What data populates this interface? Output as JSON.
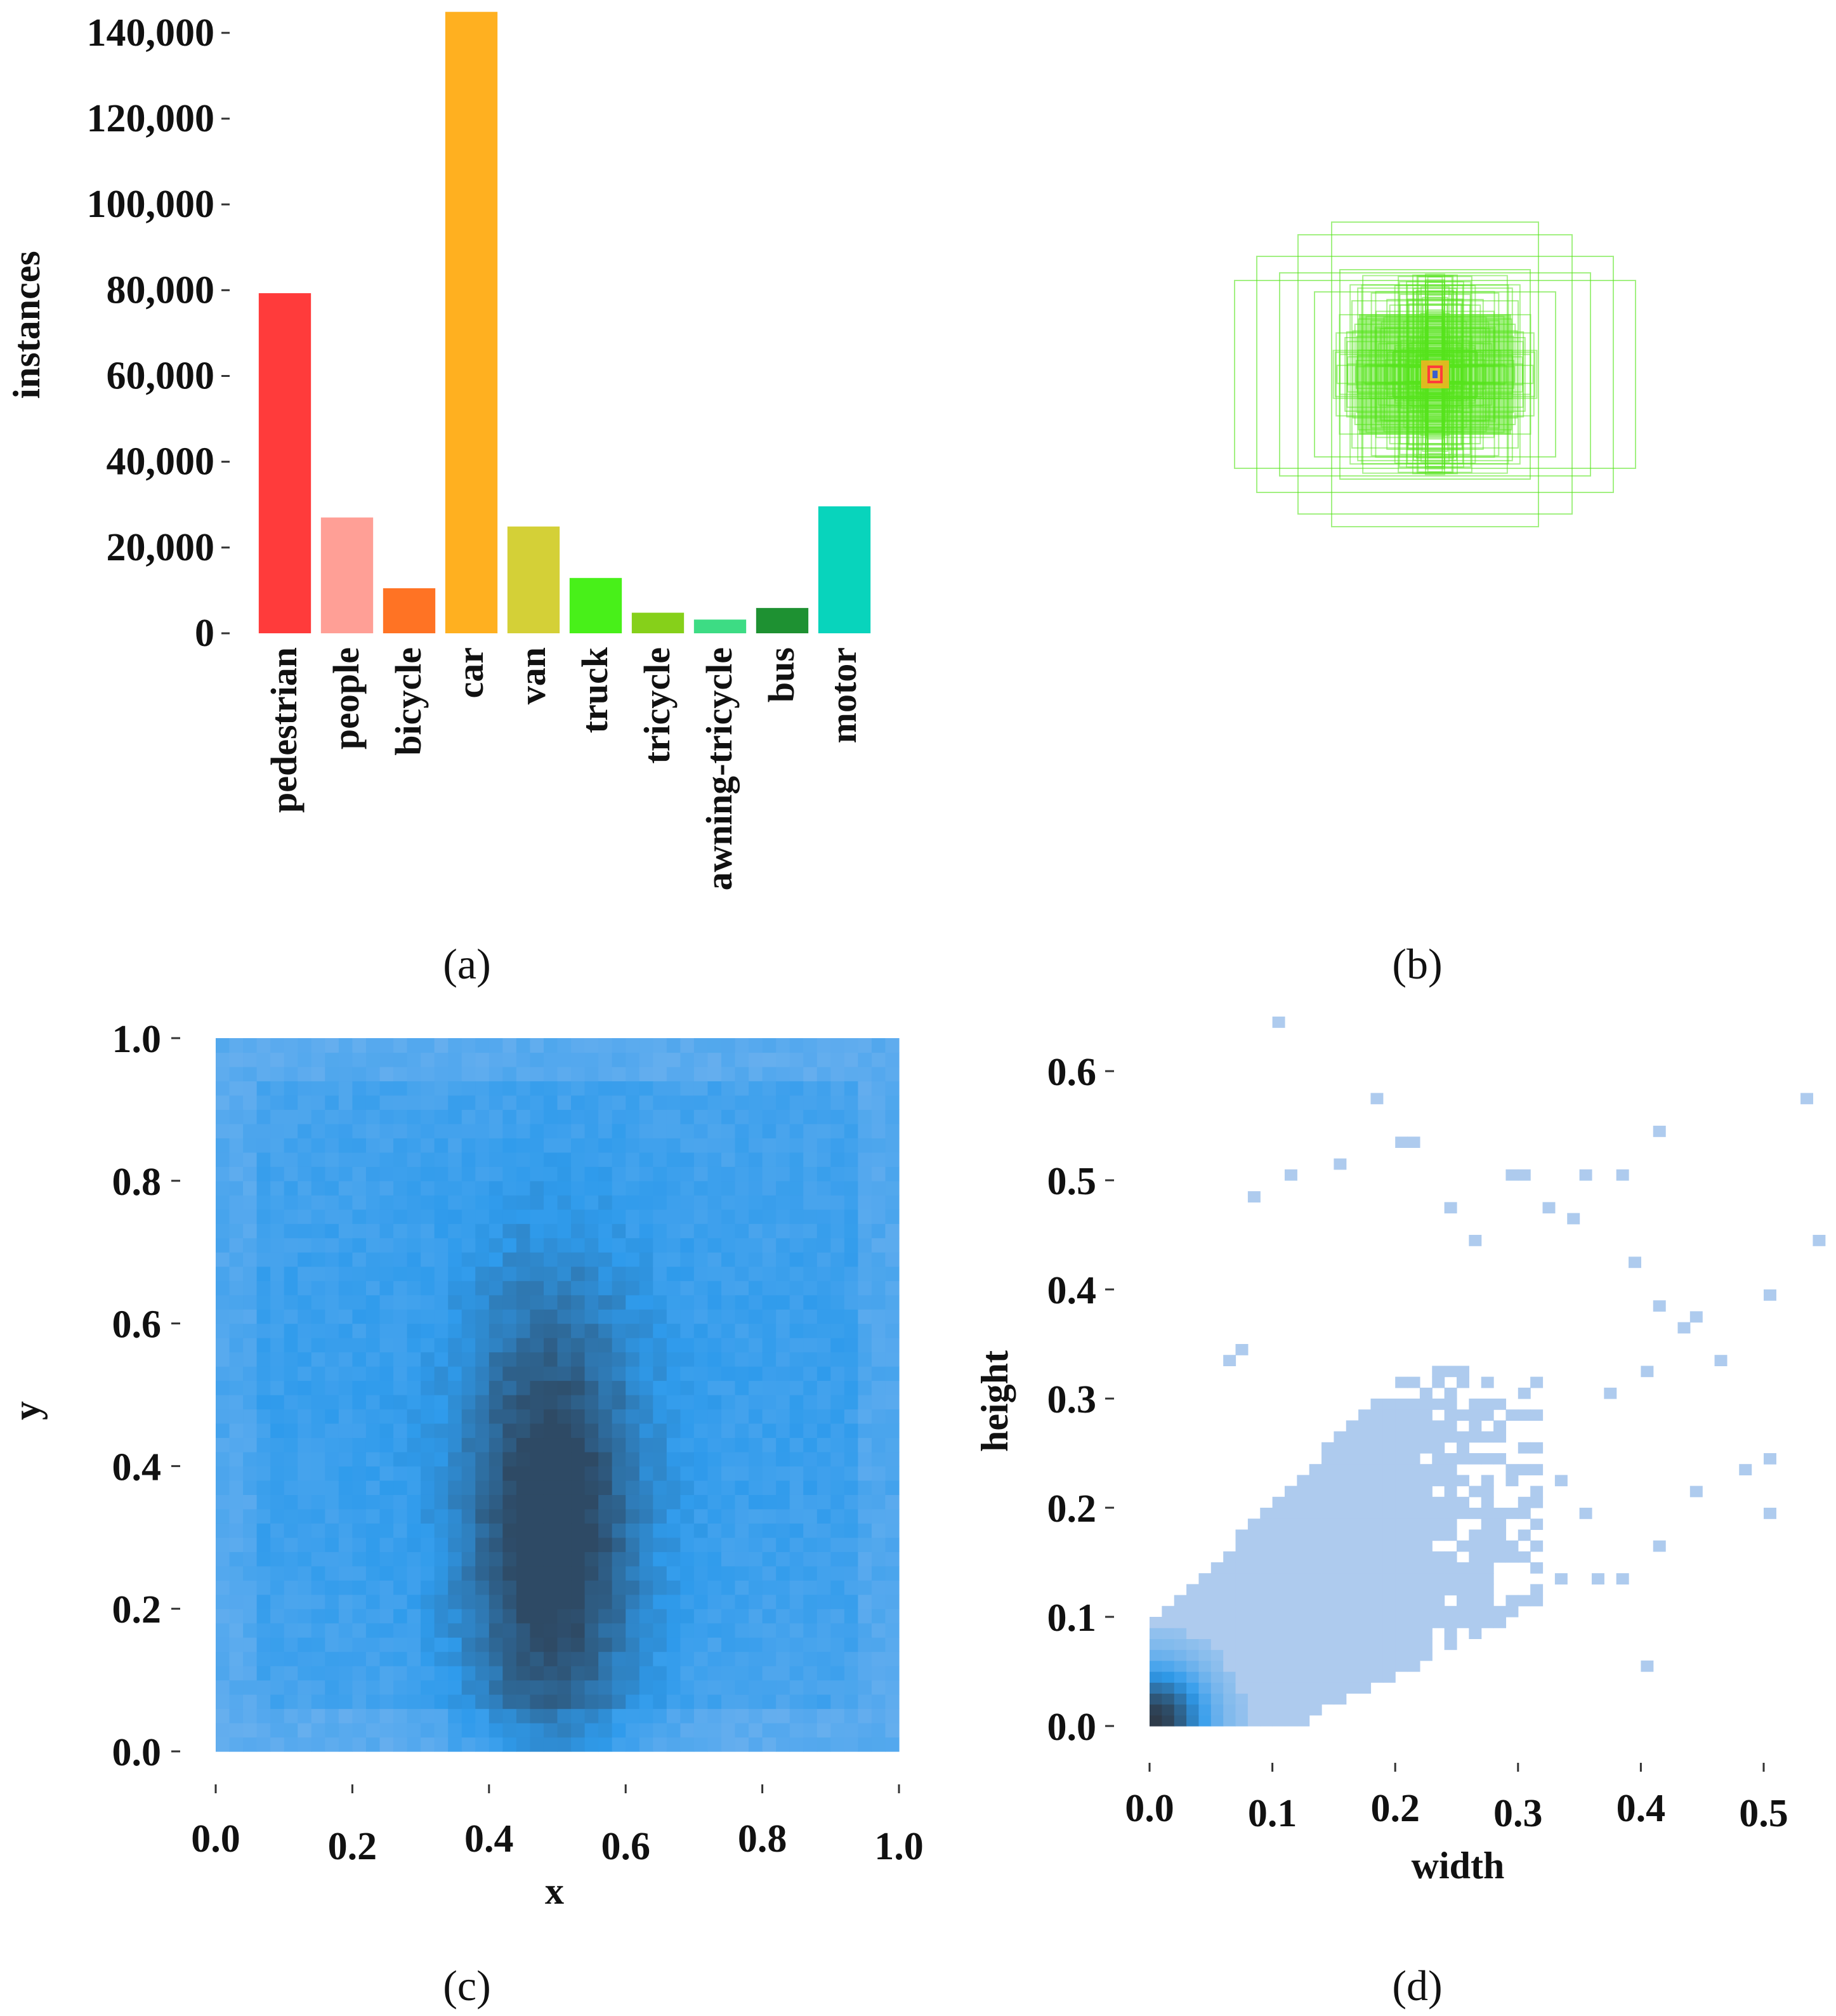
{
  "figure": {
    "captions": [
      "(a)",
      "(b)",
      "(c)",
      "(d)"
    ]
  },
  "chart_data": [
    {
      "id": "a",
      "type": "bar",
      "title": "",
      "xlabel": "",
      "ylabel": "instances",
      "ylim": [
        0,
        145000
      ],
      "yticks": [
        0,
        20000,
        40000,
        60000,
        80000,
        100000,
        120000,
        140000
      ],
      "ytick_labels": [
        "0",
        "20,000",
        "40,000",
        "60,000",
        "80,000",
        "100,000",
        "120,000",
        "140,000"
      ],
      "categories": [
        "pedestrian",
        "people",
        "bicycle",
        "car",
        "van",
        "truck",
        "tricycle",
        "awning-tricycle",
        "bus",
        "motor"
      ],
      "values": [
        79300,
        27000,
        10500,
        144900,
        24900,
        12900,
        4800,
        3200,
        5900,
        29600
      ],
      "colors": [
        "#ff3b3b",
        "#ff9f96",
        "#ff7324",
        "#ffb020",
        "#d4d037",
        "#48f019",
        "#86d01a",
        "#3ddc84",
        "#1e9132",
        "#08d4bc"
      ],
      "grid": false
    },
    {
      "id": "b",
      "type": "box-overlay",
      "description_free": true,
      "box_color": "#55e41c",
      "center_colors": [
        "#ffb020",
        "#ff3b3b",
        "#3a5fcd"
      ]
    },
    {
      "id": "c",
      "type": "heatmap",
      "title": "",
      "xlabel": "x",
      "ylabel": "y",
      "xlim": [
        0.0,
        1.0
      ],
      "ylim": [
        0.0,
        1.0
      ],
      "xtick_labels": [
        "0.0",
        "0.2",
        "0.4",
        "0.6",
        "0.8",
        "1.0"
      ],
      "ytick_labels": [
        "0.0",
        "0.2",
        "0.4",
        "0.6",
        "0.8",
        "1.0"
      ],
      "peak_center": [
        0.49,
        0.3
      ],
      "color_low": "#8ebdf0",
      "color_mid": "#2f9bec",
      "color_high": "#2e4a65"
    },
    {
      "id": "d",
      "type": "heatmap",
      "title": "",
      "xlabel": "width",
      "ylabel": "height",
      "xlim": [
        0.0,
        0.55
      ],
      "ylim": [
        0.0,
        0.65
      ],
      "xtick_labels": [
        "0.0",
        "0.1",
        "0.2",
        "0.3",
        "0.4",
        "0.5"
      ],
      "ytick_labels": [
        "0.0",
        "0.1",
        "0.2",
        "0.3",
        "0.4",
        "0.5",
        "0.6"
      ],
      "peak_center": [
        0.01,
        0.02
      ],
      "color_low": "#aecbee",
      "color_mid": "#2f9bec",
      "color_high": "#2e3b4a"
    }
  ]
}
